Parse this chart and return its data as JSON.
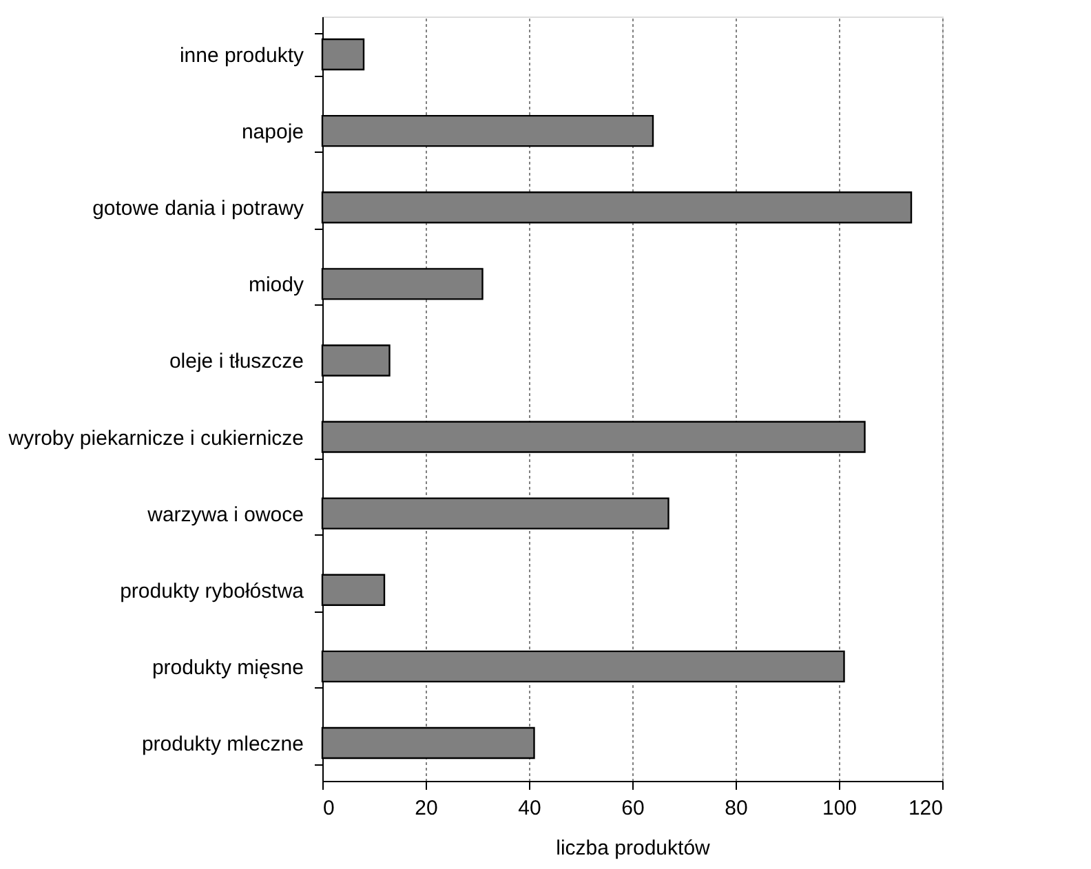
{
  "chart_data": {
    "type": "bar",
    "orientation": "horizontal",
    "xlabel": "liczba produktów",
    "categories": [
      "inne produkty",
      "napoje",
      "gotowe dania i potrawy",
      "miody",
      "oleje i tłuszcze",
      "wyroby piekarnicze i cukiernicze",
      "warzywa i owoce",
      "produkty rybołóstwa",
      "produkty mięsne",
      "produkty mleczne"
    ],
    "values": [
      8,
      64,
      114,
      31,
      13,
      105,
      67,
      12,
      101,
      41
    ],
    "color": "#808080",
    "xlim": [
      0,
      120
    ],
    "xticks": [
      0,
      20,
      40,
      60,
      80,
      100,
      120
    ],
    "grid": "x"
  }
}
